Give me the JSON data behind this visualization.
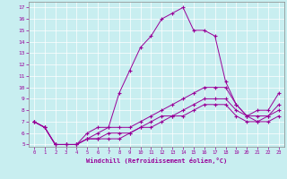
{
  "xlabel": "Windchill (Refroidissement éolien,°C)",
  "bg_color": "#c8eef0",
  "line_color": "#990099",
  "grid_color": "#aadddd",
  "xlim": [
    -0.5,
    23.5
  ],
  "ylim": [
    4.8,
    17.5
  ],
  "xticks": [
    0,
    1,
    2,
    3,
    4,
    5,
    6,
    7,
    8,
    9,
    10,
    11,
    12,
    13,
    14,
    15,
    16,
    17,
    18,
    19,
    20,
    21,
    22,
    23
  ],
  "yticks": [
    5,
    6,
    7,
    8,
    9,
    10,
    11,
    12,
    13,
    14,
    15,
    16,
    17
  ],
  "lines": [
    {
      "x": [
        0,
        1,
        2,
        3,
        4,
        5,
        6,
        7,
        8,
        9,
        10,
        11,
        12,
        13,
        14,
        15,
        16,
        17,
        18,
        19,
        20,
        21,
        22,
        23
      ],
      "y": [
        7.0,
        6.5,
        5.0,
        5.0,
        5.0,
        6.0,
        6.5,
        6.5,
        9.5,
        11.5,
        13.5,
        14.5,
        16.0,
        16.5,
        17.0,
        15.0,
        15.0,
        14.5,
        10.5,
        8.5,
        7.5,
        8.0,
        8.0,
        9.5
      ]
    },
    {
      "x": [
        0,
        1,
        2,
        3,
        4,
        5,
        6,
        7,
        8,
        9,
        10,
        11,
        12,
        13,
        14,
        15,
        16,
        17,
        18,
        19,
        20,
        21,
        22,
        23
      ],
      "y": [
        7.0,
        6.5,
        5.0,
        5.0,
        5.0,
        5.5,
        6.0,
        6.5,
        6.5,
        6.5,
        7.0,
        7.5,
        8.0,
        8.5,
        9.0,
        9.5,
        10.0,
        10.0,
        10.0,
        8.5,
        7.5,
        7.5,
        7.5,
        8.5
      ]
    },
    {
      "x": [
        0,
        1,
        2,
        3,
        4,
        5,
        6,
        7,
        8,
        9,
        10,
        11,
        12,
        13,
        14,
        15,
        16,
        17,
        18,
        19,
        20,
        21,
        22,
        23
      ],
      "y": [
        7.0,
        6.5,
        5.0,
        5.0,
        5.0,
        5.5,
        5.5,
        6.0,
        6.0,
        6.0,
        6.5,
        7.0,
        7.5,
        7.5,
        8.0,
        8.5,
        9.0,
        9.0,
        9.0,
        8.0,
        7.5,
        7.0,
        7.5,
        8.0
      ]
    },
    {
      "x": [
        0,
        1,
        2,
        3,
        4,
        5,
        6,
        7,
        8,
        9,
        10,
        11,
        12,
        13,
        14,
        15,
        16,
        17,
        18,
        19,
        20,
        21,
        22,
        23
      ],
      "y": [
        7.0,
        6.5,
        5.0,
        5.0,
        5.0,
        5.5,
        5.5,
        5.5,
        5.5,
        6.0,
        6.5,
        6.5,
        7.0,
        7.5,
        7.5,
        8.0,
        8.5,
        8.5,
        8.5,
        7.5,
        7.0,
        7.0,
        7.0,
        7.5
      ]
    }
  ]
}
